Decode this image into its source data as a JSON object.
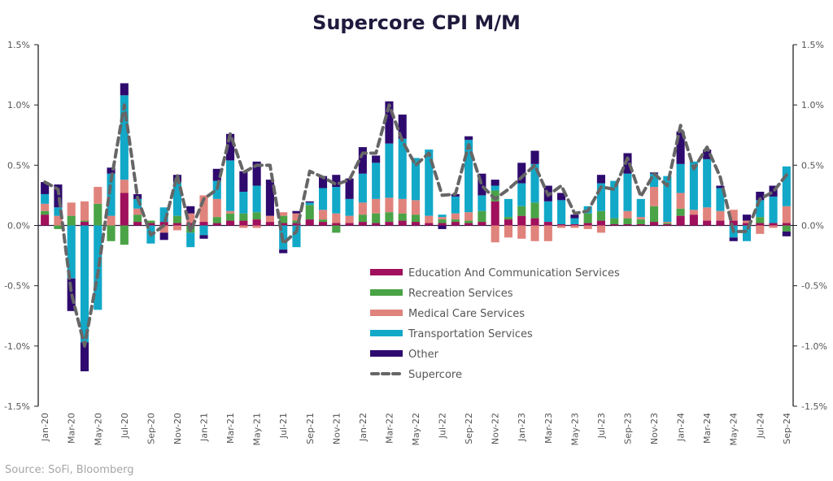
{
  "chart_data": {
    "type": "bar",
    "subtype": "stacked-bar-with-line",
    "title": "Supercore CPI M/M",
    "source": "Source: SoFi, Bloomberg",
    "xlabel": "",
    "ylabel": "",
    "ylim": [
      -1.5,
      1.5
    ],
    "yticks": [
      -1.5,
      -1.0,
      -0.5,
      0.0,
      0.5,
      1.0,
      1.5
    ],
    "ytick_labels": [
      "-1.5%",
      "-1.0%",
      "-0.5%",
      "0.0%",
      "0.5%",
      "1.0%",
      "1.5%"
    ],
    "secondary_axis_mirrored": true,
    "legend_position": "center",
    "categories": [
      "Jan-20",
      "Feb-20",
      "Mar-20",
      "Apr-20",
      "May-20",
      "Jun-20",
      "Jul-20",
      "Aug-20",
      "Sep-20",
      "Oct-20",
      "Nov-20",
      "Dec-20",
      "Jan-21",
      "Feb-21",
      "Mar-21",
      "Apr-21",
      "May-21",
      "Jun-21",
      "Jul-21",
      "Aug-21",
      "Sep-21",
      "Oct-21",
      "Nov-21",
      "Dec-21",
      "Jan-22",
      "Feb-22",
      "Mar-22",
      "Apr-22",
      "May-22",
      "Jun-22",
      "Jul-22",
      "Aug-22",
      "Sep-22",
      "Oct-22",
      "Nov-22",
      "Dec-22",
      "Jan-23",
      "Feb-23",
      "Mar-23",
      "Apr-23",
      "May-23",
      "Jun-23",
      "Jul-23",
      "Aug-23",
      "Sep-23",
      "Oct-23",
      "Nov-23",
      "Dec-23",
      "Jan-24",
      "Feb-24",
      "Mar-24",
      "Apr-24",
      "May-24",
      "Jun-24",
      "Jul-24",
      "Aug-24",
      "Sep-24"
    ],
    "xtick_labels": [
      "Jan-20",
      "Mar-20",
      "May-20",
      "Jul-20",
      "Sep-20",
      "Nov-20",
      "Jan-21",
      "Mar-21",
      "May-21",
      "Jul-21",
      "Sep-21",
      "Nov-21",
      "Jan-22",
      "Mar-22",
      "May-22",
      "Jul-22",
      "Sep-22",
      "Nov-22",
      "Jan-23",
      "Mar-23",
      "May-23",
      "Jul-23",
      "Sep-23",
      "Nov-23",
      "Jan-24",
      "Mar-24",
      "May-24",
      "Jul-24",
      "Sep-24"
    ],
    "series": [
      {
        "name": "Education And Communication Services",
        "color": "#a0105c",
        "type": "bar",
        "values": [
          0.09,
          0.0,
          0.0,
          0.03,
          0.0,
          0.0,
          0.27,
          0.03,
          0.02,
          0.03,
          0.02,
          0.02,
          0.03,
          0.02,
          0.04,
          0.04,
          0.05,
          0.03,
          0.02,
          0.02,
          0.05,
          0.03,
          0.02,
          0.02,
          0.03,
          0.02,
          0.03,
          0.04,
          0.03,
          0.02,
          0.02,
          0.03,
          0.02,
          0.03,
          0.2,
          0.05,
          0.08,
          0.06,
          0.03,
          0.01,
          0.01,
          0.02,
          0.04,
          0.01,
          0.01,
          0.01,
          0.03,
          0.01,
          0.08,
          0.09,
          0.04,
          0.04,
          0.04,
          0.02,
          0.02,
          0.02,
          0.02
        ]
      },
      {
        "name": "Recreation Services",
        "color": "#4aa346",
        "type": "bar",
        "values": [
          0.03,
          -0.03,
          0.08,
          0.01,
          0.18,
          -0.13,
          -0.16,
          0.06,
          0.02,
          0.0,
          0.06,
          -0.06,
          0.0,
          0.05,
          0.06,
          0.06,
          0.06,
          0.0,
          0.06,
          0.02,
          0.12,
          0.02,
          -0.06,
          0.0,
          0.06,
          0.08,
          0.08,
          0.06,
          0.06,
          0.0,
          0.03,
          0.02,
          0.02,
          0.09,
          0.09,
          0.02,
          0.08,
          0.13,
          0.0,
          0.0,
          0.0,
          0.08,
          0.08,
          0.05,
          0.05,
          0.04,
          0.13,
          0.01,
          0.06,
          0.0,
          0.0,
          0.0,
          0.0,
          0.0,
          0.05,
          0.0,
          -0.05
        ]
      },
      {
        "name": "Medical Care Services",
        "color": "#e0837c",
        "type": "bar",
        "values": [
          0.06,
          0.08,
          0.11,
          0.16,
          0.14,
          0.08,
          0.11,
          0.05,
          0.0,
          -0.06,
          -0.04,
          0.08,
          0.22,
          0.15,
          0.02,
          -0.02,
          -0.02,
          0.05,
          0.03,
          0.06,
          0.0,
          0.08,
          0.08,
          0.06,
          0.1,
          0.12,
          0.12,
          0.12,
          0.12,
          0.06,
          0.02,
          0.05,
          0.07,
          0.0,
          -0.14,
          -0.1,
          -0.11,
          -0.13,
          -0.13,
          -0.02,
          -0.02,
          -0.03,
          -0.06,
          0.0,
          0.06,
          0.02,
          0.16,
          0.01,
          0.13,
          0.04,
          0.11,
          0.08,
          0.09,
          0.02,
          -0.07,
          -0.02,
          0.14
        ]
      },
      {
        "name": "Transportation Services",
        "color": "#12a8c8",
        "type": "bar",
        "values": [
          0.08,
          0.07,
          -0.44,
          -0.97,
          -0.7,
          0.35,
          0.7,
          0.08,
          -0.15,
          0.12,
          0.28,
          -0.12,
          -0.08,
          0.15,
          0.42,
          0.18,
          0.22,
          0.0,
          -0.2,
          -0.18,
          0.02,
          0.18,
          0.22,
          0.14,
          0.24,
          0.3,
          0.45,
          0.5,
          0.35,
          0.55,
          0.02,
          0.14,
          0.6,
          0.13,
          0.04,
          0.15,
          0.19,
          0.32,
          0.17,
          0.2,
          0.05,
          0.06,
          0.23,
          0.31,
          0.31,
          0.15,
          0.11,
          0.38,
          0.24,
          0.4,
          0.4,
          0.19,
          -0.1,
          -0.13,
          0.14,
          0.22,
          0.33
        ]
      },
      {
        "name": "Other",
        "color": "#2e0a6e",
        "type": "bar",
        "values": [
          0.1,
          0.19,
          -0.27,
          -0.24,
          0.0,
          0.05,
          0.1,
          0.04,
          0.0,
          -0.06,
          0.06,
          0.06,
          -0.03,
          0.1,
          0.22,
          0.17,
          0.2,
          0.3,
          -0.03,
          0.02,
          0.01,
          0.1,
          0.1,
          0.17,
          0.22,
          0.06,
          0.35,
          0.2,
          0.0,
          0.0,
          -0.03,
          0.02,
          0.03,
          0.18,
          0.05,
          0.0,
          0.17,
          0.11,
          0.13,
          0.06,
          0.03,
          0.0,
          0.07,
          0.0,
          0.17,
          0.0,
          0.01,
          0.0,
          0.27,
          0.0,
          0.08,
          0.02,
          -0.03,
          0.05,
          0.07,
          0.09,
          -0.04
        ]
      },
      {
        "name": "Supercore",
        "color": "#666666",
        "type": "line",
        "style": "dashed",
        "values": [
          0.36,
          0.3,
          -0.56,
          -1.0,
          -0.4,
          0.37,
          1.0,
          0.23,
          -0.08,
          0.0,
          0.42,
          -0.05,
          0.22,
          0.3,
          0.76,
          0.44,
          0.5,
          0.5,
          -0.15,
          -0.05,
          0.45,
          0.4,
          0.34,
          0.38,
          0.6,
          0.6,
          1.0,
          0.7,
          0.5,
          0.6,
          0.25,
          0.26,
          0.67,
          0.33,
          0.22,
          0.3,
          0.4,
          0.5,
          0.25,
          0.33,
          0.1,
          0.12,
          0.32,
          0.3,
          0.56,
          0.24,
          0.43,
          0.33,
          0.83,
          0.47,
          0.65,
          0.4,
          -0.05,
          -0.05,
          0.22,
          0.28,
          0.42
        ]
      }
    ]
  }
}
